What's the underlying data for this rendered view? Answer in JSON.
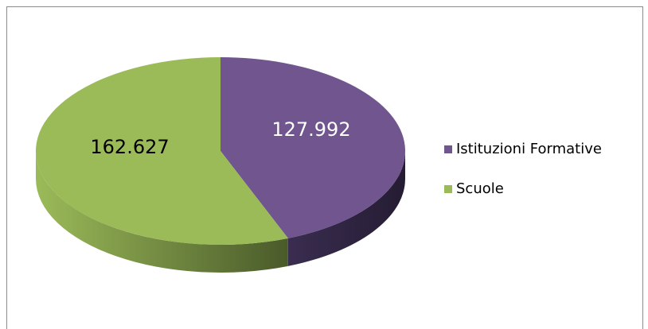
{
  "chart_data": {
    "type": "pie",
    "categories": [
      "Istituzioni Formative",
      "Scuole"
    ],
    "values": [
      127992,
      162627
    ],
    "value_labels": [
      "127.992",
      "162.627"
    ],
    "colors": [
      "#70558f",
      "#9bbb59"
    ],
    "label_colors": [
      "#ffffff",
      "#000000"
    ],
    "legend": "right"
  }
}
